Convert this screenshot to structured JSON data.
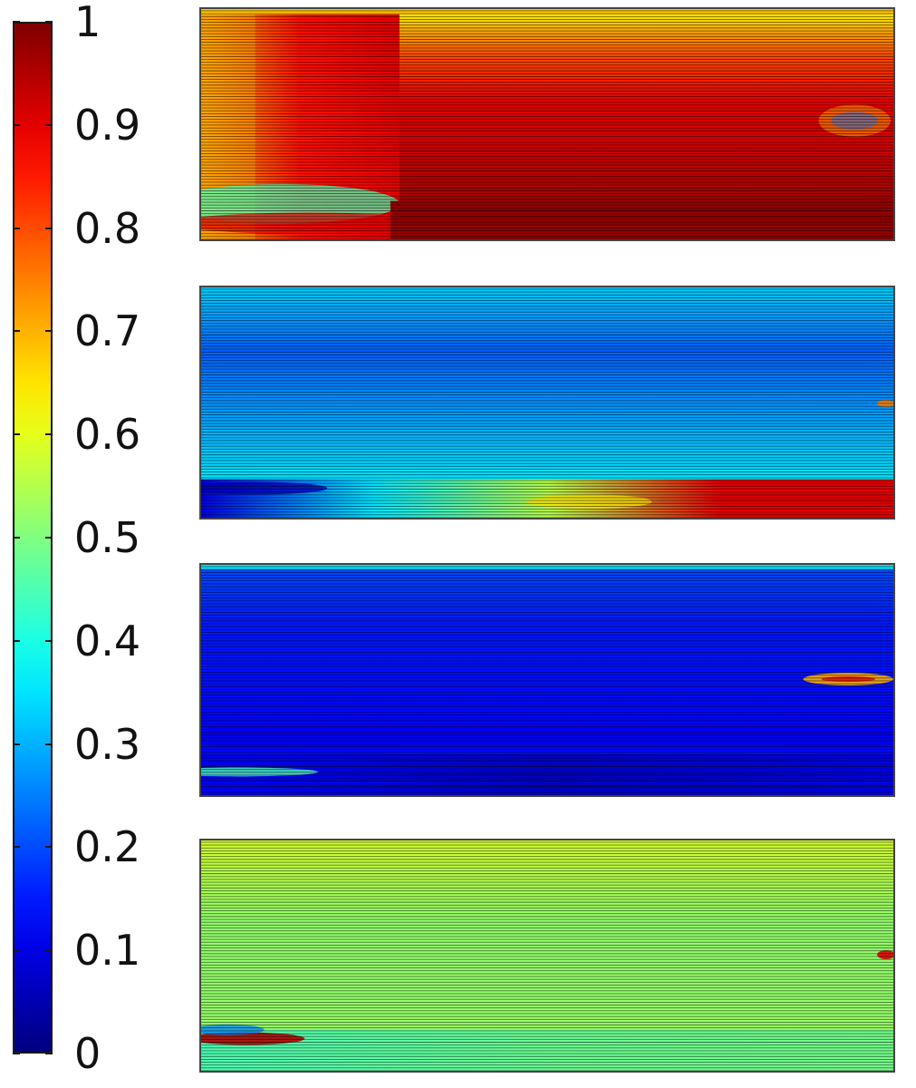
{
  "chart_data": {
    "type": "heatmap",
    "colormap": "jet",
    "colorbar": {
      "min": 0,
      "max": 1,
      "ticks": [
        {
          "value": 1,
          "label": "1"
        },
        {
          "value": 0.9,
          "label": "0.9"
        },
        {
          "value": 0.8,
          "label": "0.8"
        },
        {
          "value": 0.7,
          "label": "0.7"
        },
        {
          "value": 0.6,
          "label": "0.6"
        },
        {
          "value": 0.5,
          "label": "0.5"
        },
        {
          "value": 0.4,
          "label": "0.4"
        },
        {
          "value": 0.3,
          "label": "0.3"
        },
        {
          "value": 0.2,
          "label": "0.2"
        },
        {
          "value": 0.1,
          "label": "0.1"
        },
        {
          "value": 0,
          "label": "0"
        }
      ]
    },
    "panels": [
      {
        "field_levels": {
          "bulk": 0.92,
          "top_edge": 0.62,
          "left_edge": 0.7,
          "bottom_band": 0.98,
          "bottom_left_band": 0.45
        }
      },
      {
        "field_levels": {
          "bulk": 0.28,
          "top_edge": 0.33,
          "right_region": 0.4,
          "bottom_band_left": 0.1,
          "bottom_band_right": 0.9
        }
      },
      {
        "field_levels": {
          "bulk": 0.15,
          "top_edge": 0.2,
          "right_streak": 0.7,
          "bottom_band": 0.07
        }
      },
      {
        "field_levels": {
          "bulk": 0.52,
          "top_edge": 0.58,
          "bottom_left_streak": 0.95,
          "bottom_band": 0.48
        }
      }
    ]
  }
}
